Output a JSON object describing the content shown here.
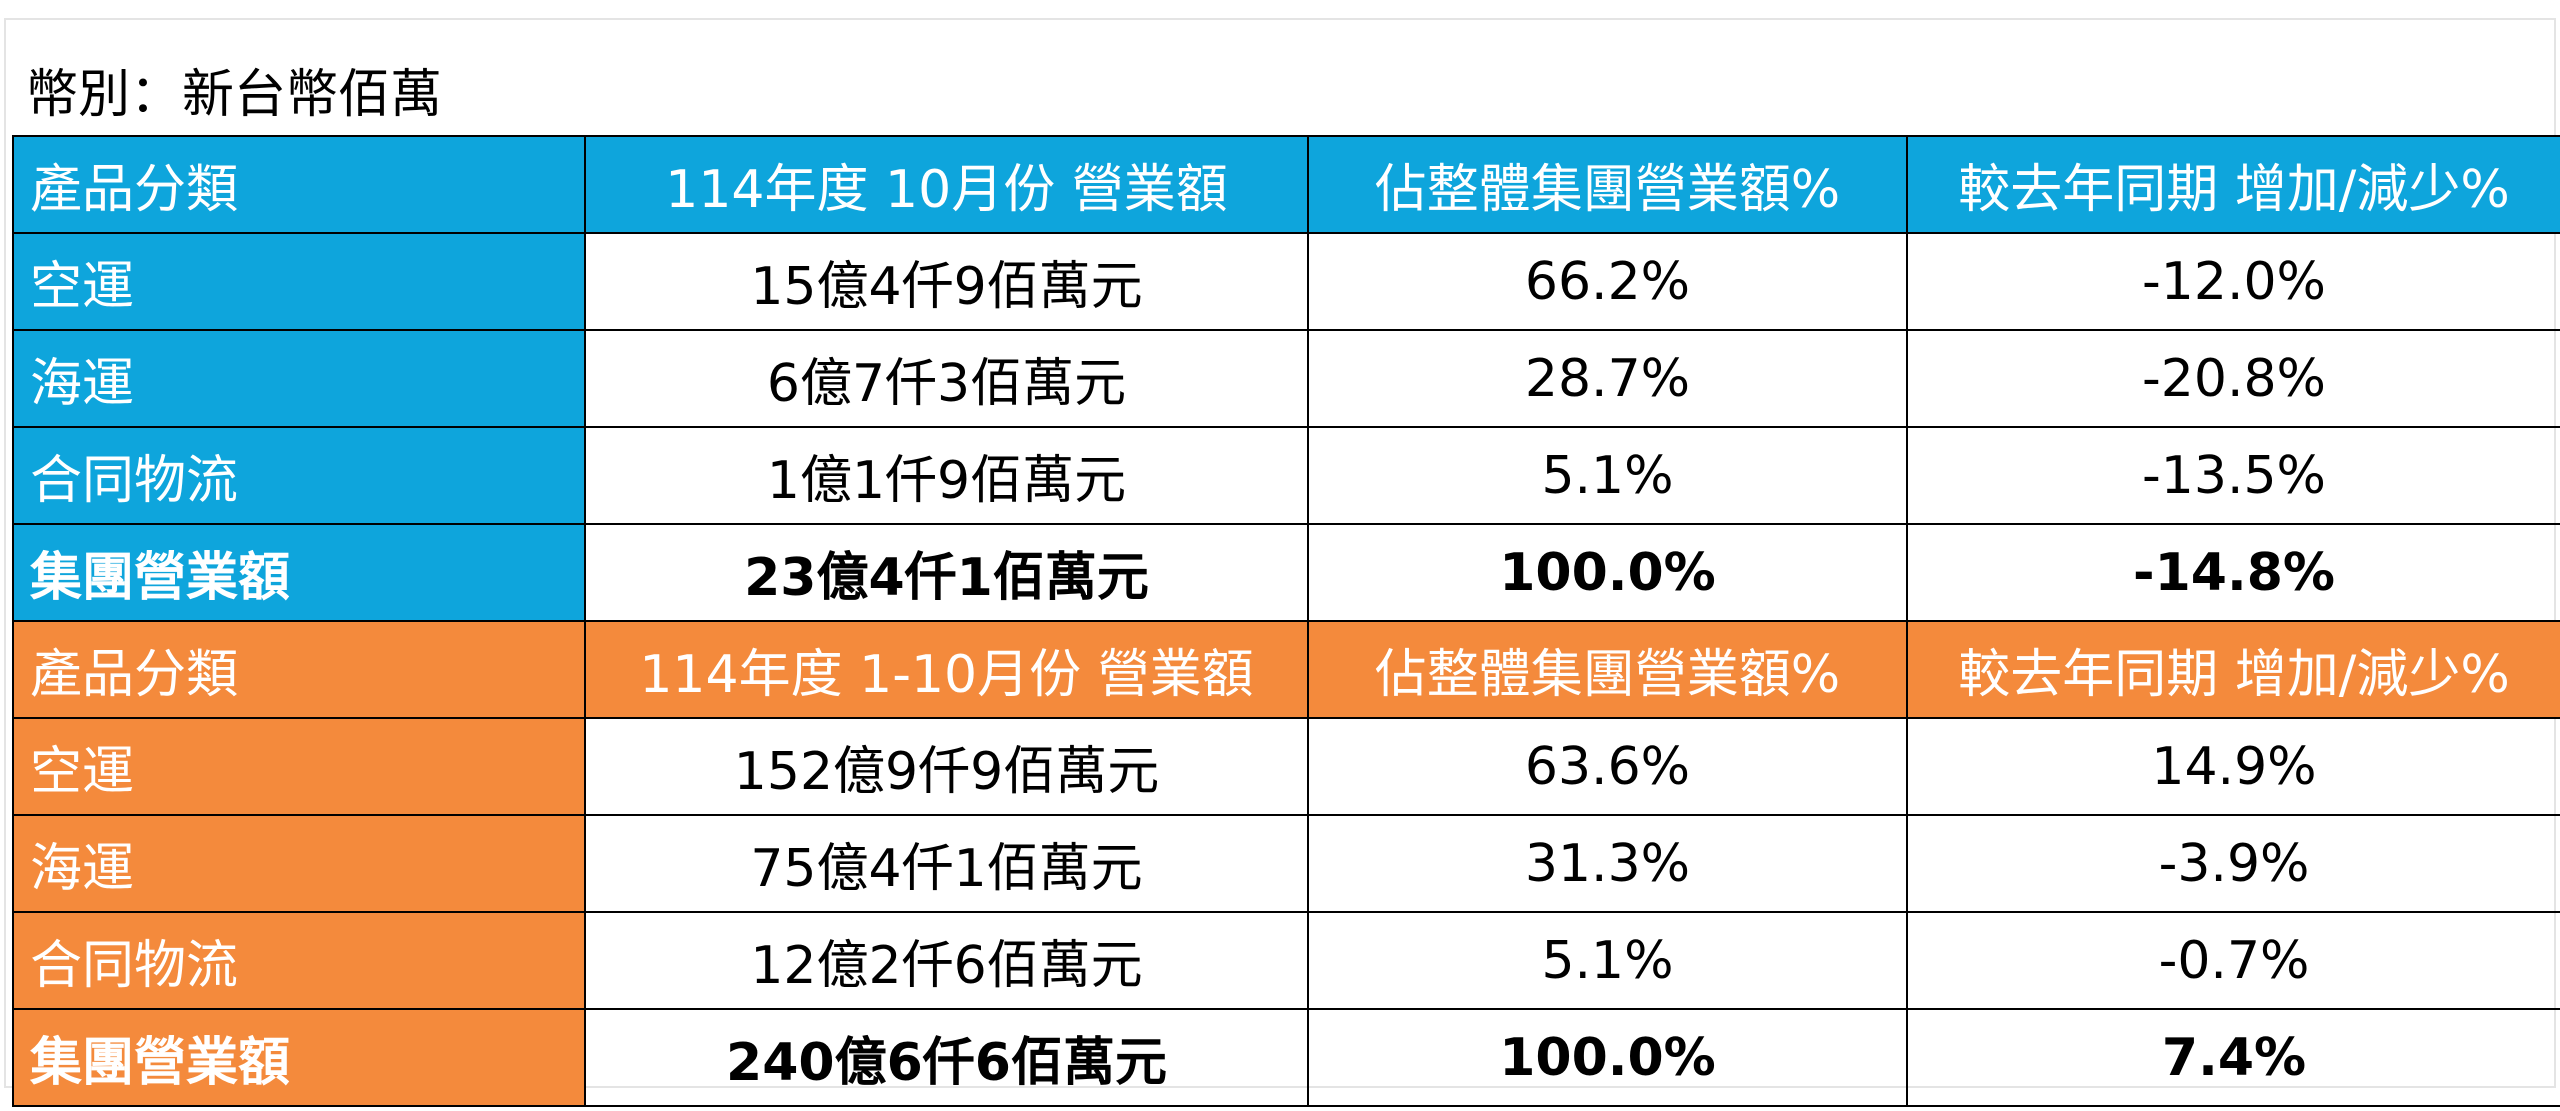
{
  "currency_label": "幣別：新台幣佰萬",
  "colors": {
    "blue": "#0ea5dc",
    "orange": "#f48a3c",
    "border": "#000000"
  },
  "sections": [
    {
      "theme": "blue",
      "header": {
        "category": "產品分類",
        "revenue": "114年度 10月份 營業額",
        "share": "佔整體集團營業額%",
        "yoy": "較去年同期 增加/減少%"
      },
      "rows": [
        {
          "category": "空運",
          "revenue": "15億4仟9佰萬元",
          "share": "66.2%",
          "yoy": "-12.0%"
        },
        {
          "category": "海運",
          "revenue": "6億7仟3佰萬元",
          "share": "28.7%",
          "yoy": "-20.8%"
        },
        {
          "category": "合同物流",
          "revenue": "1億1仟9佰萬元",
          "share": "5.1%",
          "yoy": "-13.5%"
        }
      ],
      "total": {
        "category": "集團營業額",
        "revenue": "23億4仟1佰萬元",
        "share": "100.0%",
        "yoy": "-14.8%"
      }
    },
    {
      "theme": "orange",
      "header": {
        "category": "產品分類",
        "revenue": "114年度 1-10月份 營業額",
        "share": "佔整體集團營業額%",
        "yoy": "較去年同期 增加/減少%"
      },
      "rows": [
        {
          "category": "空運",
          "revenue": "152億9仟9佰萬元",
          "share": "63.6%",
          "yoy": "14.9%"
        },
        {
          "category": "海運",
          "revenue": "75億4仟1佰萬元",
          "share": "31.3%",
          "yoy": "-3.9%"
        },
        {
          "category": "合同物流",
          "revenue": "12億2仟6佰萬元",
          "share": "5.1%",
          "yoy": "-0.7%"
        }
      ],
      "total": {
        "category": "集團營業額",
        "revenue": "240億6仟6佰萬元",
        "share": "100.0%",
        "yoy": "7.4%"
      }
    }
  ]
}
